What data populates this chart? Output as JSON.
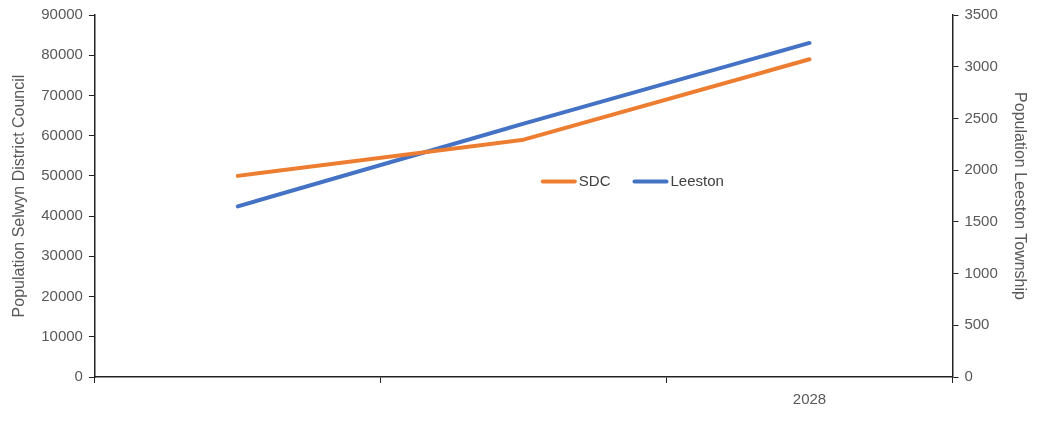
{
  "chart_data": {
    "type": "line",
    "categories": [
      null,
      null,
      "2028"
    ],
    "ylabel": "Population Selwyn District Council",
    "y2label": "Population Leeston Township",
    "series": [
      {
        "name": "SDC",
        "color": "#ed7d31",
        "values": [
          50000,
          59000,
          79000
        ]
      },
      {
        "name": "Leeston",
        "color": "#4472c4",
        "values": [
          1650,
          2450,
          3230
        ],
        "axis": "y2"
      }
    ],
    "ylim": [
      0,
      90000
    ],
    "yticks": [
      0,
      10000,
      20000,
      30000,
      40000,
      50000,
      60000,
      70000,
      80000,
      90000
    ],
    "y2lim": [
      0,
      3500
    ],
    "y2ticks": [
      0,
      500,
      1000,
      1500,
      2000,
      2500,
      3000,
      3500
    ],
    "grid": false,
    "legend": "center right",
    "marker": "none",
    "line_style": "solid"
  }
}
